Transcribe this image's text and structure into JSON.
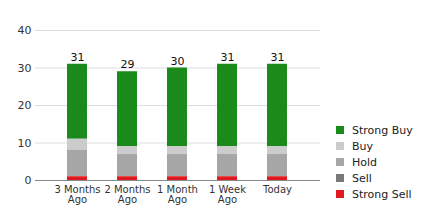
{
  "chart_data": {
    "type": "bar",
    "stacked": true,
    "categories": [
      "3 Months Ago",
      "2 Months Ago",
      "1 Month Ago",
      "1 Week Ago",
      "Today"
    ],
    "series": [
      {
        "name": "Strong Buy",
        "color": "#1a8a1a",
        "values": [
          20,
          20,
          21,
          22,
          22
        ]
      },
      {
        "name": "Buy",
        "color": "#cccccc",
        "values": [
          3,
          2,
          2,
          2,
          2
        ]
      },
      {
        "name": "Hold",
        "color": "#a6a6a6",
        "values": [
          7,
          6,
          6,
          6,
          6
        ]
      },
      {
        "name": "Sell",
        "color": "#7a7a7a",
        "values": [
          0,
          0,
          0,
          0,
          0
        ]
      },
      {
        "name": "Strong Sell",
        "color": "#e0191e",
        "values": [
          1,
          1,
          1,
          1,
          1
        ]
      }
    ],
    "totals": [
      31,
      29,
      30,
      31,
      31
    ],
    "ylim": [
      0,
      40
    ],
    "yticks": [
      0,
      10,
      20,
      30,
      40
    ],
    "grid": true,
    "legend": "right"
  }
}
